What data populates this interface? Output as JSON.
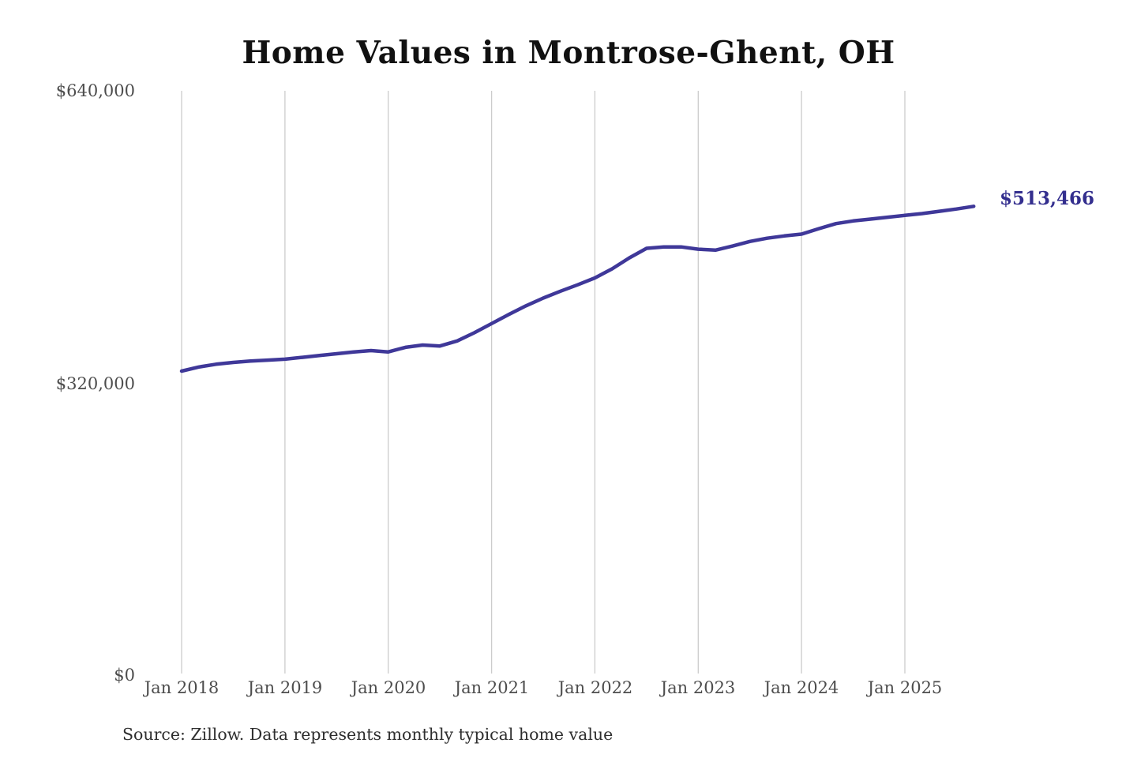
{
  "title": "Home Values in Montrose-Ghent, OH",
  "footer": {
    "source": "Source: Zillow. Data represents monthly typical home value"
  },
  "chart_data": {
    "type": "line",
    "title": "Home Values in Montrose-Ghent, OH",
    "xlabel": "",
    "ylabel": "",
    "ylim": [
      0,
      640000
    ],
    "grid": "vertical-only",
    "legend": "none",
    "y_tick_labels": [
      "$0",
      "$320,000",
      "$640,000"
    ],
    "x_tick_labels": [
      "Jan 2018",
      "Jan 2019",
      "Jan 2020",
      "Jan 2021",
      "Jan 2022",
      "Jan 2023",
      "Jan 2024",
      "Jan 2025"
    ],
    "x_gridline_years": [
      2018,
      2019,
      2020,
      2021,
      2022,
      2023,
      2024,
      2025
    ],
    "end_label": "$513,466",
    "final_value": 513466,
    "colors": {
      "line": "#3f3899",
      "end_label": "#332e8e",
      "grid": "#cccccc",
      "tick_text": "#4d4d4d",
      "title_text": "#111111",
      "source_text": "#2e2e2e"
    },
    "series": [
      {
        "name": "Monthly typical home value",
        "points": [
          {
            "month": "2018-01",
            "value": 333000
          },
          {
            "month": "2018-03",
            "value": 337500
          },
          {
            "month": "2018-05",
            "value": 340500
          },
          {
            "month": "2018-07",
            "value": 342500
          },
          {
            "month": "2018-09",
            "value": 344000
          },
          {
            "month": "2018-11",
            "value": 345000
          },
          {
            "month": "2019-01",
            "value": 346000
          },
          {
            "month": "2019-03",
            "value": 348000
          },
          {
            "month": "2019-05",
            "value": 350000
          },
          {
            "month": "2019-07",
            "value": 352000
          },
          {
            "month": "2019-09",
            "value": 354000
          },
          {
            "month": "2019-11",
            "value": 355500
          },
          {
            "month": "2020-01",
            "value": 354000
          },
          {
            "month": "2020-03",
            "value": 359000
          },
          {
            "month": "2020-05",
            "value": 361500
          },
          {
            "month": "2020-07",
            "value": 360500
          },
          {
            "month": "2020-09",
            "value": 366000
          },
          {
            "month": "2020-11",
            "value": 375000
          },
          {
            "month": "2021-01",
            "value": 385000
          },
          {
            "month": "2021-03",
            "value": 395000
          },
          {
            "month": "2021-05",
            "value": 404500
          },
          {
            "month": "2021-07",
            "value": 413000
          },
          {
            "month": "2021-09",
            "value": 420500
          },
          {
            "month": "2021-11",
            "value": 427500
          },
          {
            "month": "2022-01",
            "value": 435000
          },
          {
            "month": "2022-03",
            "value": 445000
          },
          {
            "month": "2022-05",
            "value": 457000
          },
          {
            "month": "2022-07",
            "value": 467500
          },
          {
            "month": "2022-09",
            "value": 469000
          },
          {
            "month": "2022-11",
            "value": 469000
          },
          {
            "month": "2023-01",
            "value": 466500
          },
          {
            "month": "2023-03",
            "value": 465500
          },
          {
            "month": "2023-05",
            "value": 470000
          },
          {
            "month": "2023-07",
            "value": 475000
          },
          {
            "month": "2023-09",
            "value": 478500
          },
          {
            "month": "2023-11",
            "value": 481000
          },
          {
            "month": "2024-01",
            "value": 483000
          },
          {
            "month": "2024-03",
            "value": 489000
          },
          {
            "month": "2024-05",
            "value": 494500
          },
          {
            "month": "2024-07",
            "value": 497500
          },
          {
            "month": "2024-09",
            "value": 499500
          },
          {
            "month": "2024-11",
            "value": 501500
          },
          {
            "month": "2025-01",
            "value": 503500
          },
          {
            "month": "2025-03",
            "value": 505500
          },
          {
            "month": "2025-05",
            "value": 508000
          },
          {
            "month": "2025-07",
            "value": 510500
          },
          {
            "month": "2025-09",
            "value": 513466
          }
        ]
      }
    ]
  }
}
